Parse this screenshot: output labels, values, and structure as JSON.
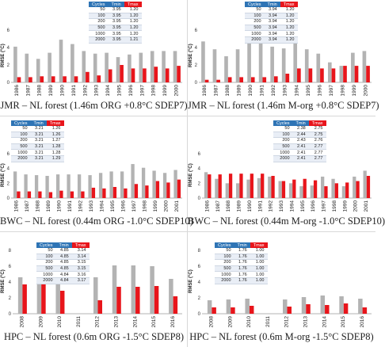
{
  "colors": {
    "gray_series": "#b3b3b3",
    "red_series": "#e8151b",
    "table_header": "#2e74b5"
  },
  "table_headers": {
    "cycles": "Cycles",
    "tmin": "Tmin",
    "tmax": "Tmax"
  },
  "ylabel": "RMSE (°C)",
  "chart_data": [
    {
      "type": "bar",
      "caption": "JMR – NL forest (1.46m ORG +0.8°C SDEP7)",
      "ylabel": "RMSE (°C)",
      "ylim": [
        0,
        6
      ],
      "yticks": [
        0,
        2,
        4,
        6
      ],
      "categories": [
        "1986",
        "1987",
        "1988",
        "1989",
        "1990",
        "1991",
        "1992",
        "1993",
        "1994",
        "1995",
        "1996",
        "1997",
        "1998",
        "1999",
        "2000"
      ],
      "series": [
        {
          "color": "gray",
          "values": [
            4.1,
            3.3,
            2.7,
            3.4,
            4.9,
            4.4,
            3.6,
            3.3,
            3.4,
            2.9,
            3.2,
            3.4,
            3.6,
            3.6,
            3.6
          ]
        },
        {
          "color": "red",
          "values": [
            0.6,
            0.6,
            0.7,
            0.7,
            0.7,
            0.7,
            1.2,
            0.8,
            1.5,
            2.0,
            1.6,
            1.6,
            1.8,
            1.6,
            1.9
          ]
        }
      ],
      "table": {
        "rows": [
          [
            "50",
            "3.95",
            "1.20"
          ],
          [
            "100",
            "3.95",
            "1.20"
          ],
          [
            "200",
            "3.95",
            "1.20"
          ],
          [
            "500",
            "3.95",
            "1.20"
          ],
          [
            "1000",
            "3.95",
            "1.20"
          ],
          [
            "2000",
            "3.95",
            "1.21"
          ]
        ]
      }
    },
    {
      "type": "bar",
      "caption": "JMR – NL forest (1.46m M-org +0.8°C SDEP7)",
      "ylabel": "RMSE (°C)",
      "ylim": [
        0,
        6
      ],
      "yticks": [
        0,
        2,
        4,
        6
      ],
      "categories": [
        "1986",
        "1987",
        "1988",
        "1989",
        "1990",
        "1991",
        "1992",
        "1993",
        "1994",
        "1995",
        "1996",
        "1997",
        "1998",
        "1999",
        "2000"
      ],
      "series": [
        {
          "color": "gray",
          "values": [
            4.7,
            3.8,
            3.0,
            3.8,
            5.4,
            4.8,
            4.1,
            3.9,
            4.5,
            3.8,
            3.3,
            2.3,
            1.9,
            3.4,
            3.6
          ]
        },
        {
          "color": "red",
          "values": [
            0.3,
            0.3,
            0.6,
            0.6,
            0.6,
            0.6,
            0.7,
            1.0,
            1.6,
            1.6,
            1.6,
            1.6,
            1.9,
            1.9,
            1.9
          ]
        }
      ],
      "table": {
        "rows": [
          [
            "50",
            "3.94",
            "1.20"
          ],
          [
            "100",
            "3.94",
            "1.20"
          ],
          [
            "200",
            "3.94",
            "1.20"
          ],
          [
            "500",
            "3.94",
            "1.20"
          ],
          [
            "1000",
            "3.94",
            "1.20"
          ],
          [
            "2000",
            "3.94",
            "1.20"
          ]
        ]
      }
    },
    {
      "type": "bar",
      "caption": "BWC – NL forest (0.44m ORG -1.0°C SDEP10)",
      "ylabel": "RMSE (°C)",
      "ylim": [
        0,
        6
      ],
      "yticks": [
        0,
        2,
        4,
        6
      ],
      "categories": [
        "1986",
        "1987",
        "1988",
        "1989",
        "1990",
        "1991",
        "1992",
        "1993",
        "1994",
        "1995",
        "1996",
        "1997",
        "1998",
        "1999",
        "2000",
        "2001"
      ],
      "series": [
        {
          "color": "gray",
          "values": [
            3.6,
            3.2,
            3.1,
            3.0,
            3.2,
            3.2,
            3.2,
            3.1,
            3.4,
            3.6,
            3.6,
            4.6,
            4.1,
            3.7,
            3.4,
            3.8
          ]
        },
        {
          "color": "red",
          "values": [
            0.9,
            0.9,
            0.9,
            0.8,
            1.0,
            0.9,
            0.9,
            1.4,
            1.3,
            1.5,
            1.3,
            1.9,
            1.7,
            2.3,
            2.1,
            2.5
          ]
        }
      ],
      "table": {
        "rows": [
          [
            "50",
            "3.21",
            "1.26"
          ],
          [
            "100",
            "3.21",
            "1.26"
          ],
          [
            "200",
            "3.21",
            "1.27"
          ],
          [
            "500",
            "3.21",
            "1.28"
          ],
          [
            "1000",
            "3.21",
            "1.28"
          ],
          [
            "2000",
            "3.21",
            "1.29"
          ]
        ]
      }
    },
    {
      "type": "bar",
      "caption": "BWC – NL forest (0.44m M-org -1.0°C SDEP10)",
      "ylabel": "RMSE (°C)",
      "ylim": [
        0,
        6
      ],
      "yticks": [
        0,
        2,
        4,
        6
      ],
      "categories": [
        "1986",
        "1987",
        "1988",
        "1989",
        "1990",
        "1991",
        "1992",
        "1993",
        "1994",
        "1995",
        "1996",
        "1997",
        "1998",
        "1999",
        "2000",
        "2001"
      ],
      "series": [
        {
          "color": "gray",
          "values": [
            3.5,
            2.6,
            2.0,
            2.0,
            2.5,
            2.7,
            2.9,
            2.3,
            2.0,
            1.6,
            1.7,
            2.9,
            2.6,
            1.6,
            2.9,
            3.7
          ]
        },
        {
          "color": "red",
          "values": [
            3.2,
            3.2,
            3.3,
            3.3,
            3.3,
            3.3,
            3.0,
            2.3,
            2.5,
            2.6,
            2.4,
            1.6,
            2.0,
            2.1,
            2.3,
            3.0
          ]
        }
      ],
      "table": {
        "rows": [
          [
            "50",
            "2.38",
            "2.75"
          ],
          [
            "100",
            "2.44",
            "2.75"
          ],
          [
            "200",
            "2.43",
            "2.76"
          ],
          [
            "500",
            "2.41",
            "2.77"
          ],
          [
            "1000",
            "2.41",
            "2.77"
          ],
          [
            "2000",
            "2.41",
            "2.77"
          ]
        ]
      }
    },
    {
      "type": "bar",
      "caption": "HPC – NL forest (0.6m ORG -1.5°C SDEP8)",
      "ylabel": "RMSE (°C)",
      "ylim": [
        0,
        8
      ],
      "yticks": [
        0,
        2,
        4,
        6,
        8
      ],
      "categories": [
        "2008",
        "2009",
        "2010",
        "2011",
        "2012",
        "2013",
        "2014",
        "2015",
        "2016"
      ],
      "series": [
        {
          "color": "gray",
          "values": [
            4.6,
            4.6,
            4.4,
            0,
            4.6,
            6.1,
            6.1,
            6.0,
            4.4
          ]
        },
        {
          "color": "red",
          "values": [
            3.7,
            3.8,
            2.9,
            0,
            1.7,
            3.4,
            3.4,
            3.5,
            2.2
          ]
        }
      ],
      "table": {
        "rows": [
          [
            "50",
            "4.85",
            "3.14"
          ],
          [
            "100",
            "4.85",
            "3.14"
          ],
          [
            "200",
            "4.85",
            "3.15"
          ],
          [
            "500",
            "4.85",
            "3.15"
          ],
          [
            "1000",
            "4.84",
            "3.16"
          ],
          [
            "2000",
            "4.84",
            "3.17"
          ]
        ]
      }
    },
    {
      "type": "bar",
      "caption": "HPC – NL forest (0.6m M-org -1.5°C SDEP8)",
      "ylabel": "RMSE (°C)",
      "ylim": [
        0,
        8
      ],
      "yticks": [
        0,
        2,
        4,
        6,
        8
      ],
      "categories": [
        "2008",
        "2009",
        "2010",
        "2011",
        "2012",
        "2013",
        "2014",
        "2015",
        "2016"
      ],
      "series": [
        {
          "color": "gray",
          "values": [
            1.7,
            1.8,
            1.9,
            0,
            1.8,
            2.1,
            2.3,
            2.2,
            1.9
          ]
        },
        {
          "color": "red",
          "values": [
            0.8,
            0.8,
            1.0,
            0,
            0.9,
            1.2,
            1.1,
            1.3,
            0.8
          ]
        }
      ],
      "table": {
        "rows": [
          [
            "50",
            "1.76",
            "1.00"
          ],
          [
            "100",
            "1.76",
            "1.00"
          ],
          [
            "200",
            "1.76",
            "1.00"
          ],
          [
            "500",
            "1.76",
            "1.00"
          ],
          [
            "1000",
            "1.76",
            "1.00"
          ],
          [
            "2000",
            "1.76",
            "1.00"
          ]
        ]
      }
    }
  ]
}
